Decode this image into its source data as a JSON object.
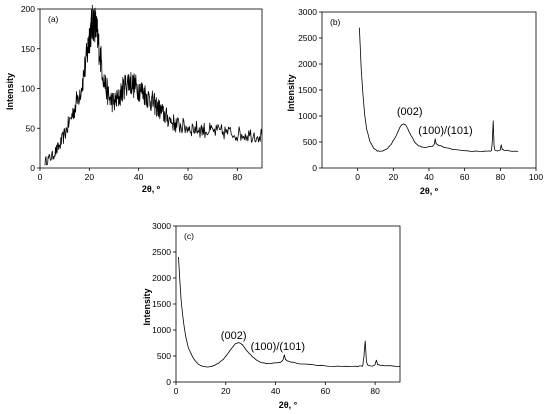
{
  "chart_data": [
    {
      "type": "line",
      "panel_label": "(a)",
      "xlabel": "2θ, º",
      "ylabel": "Intensity",
      "xlim": [
        0,
        90
      ],
      "ylim": [
        0,
        200
      ],
      "xticks": [
        0,
        20,
        40,
        60,
        80
      ],
      "yticks": [
        0,
        50,
        100,
        150,
        200
      ],
      "grid": false,
      "noisy": true,
      "series": [
        {
          "x": [
            2,
            5,
            8,
            11,
            14,
            17,
            19,
            20,
            21,
            22,
            23,
            24,
            26,
            28,
            30,
            32,
            34,
            36,
            38,
            40,
            42,
            44,
            46,
            48,
            50,
            52,
            55,
            58,
            62,
            66,
            70,
            75,
            80,
            85,
            90
          ],
          "values": [
            8,
            15,
            28,
            50,
            75,
            105,
            140,
            165,
            180,
            185,
            172,
            150,
            110,
            88,
            82,
            88,
            102,
            110,
            104,
            100,
            95,
            88,
            82,
            75,
            68,
            62,
            55,
            52,
            50,
            48,
            46,
            45,
            43,
            42,
            41
          ]
        }
      ],
      "annotations": []
    },
    {
      "type": "line",
      "panel_label": "(b)",
      "xlabel": "2θ, º",
      "ylabel": "Intensity",
      "xlim": [
        -20,
        100
      ],
      "ylim": [
        0,
        3000
      ],
      "xticks": [
        0,
        20,
        40,
        60,
        80,
        100
      ],
      "yticks": [
        0,
        500,
        1000,
        1500,
        2000,
        2500,
        3000
      ],
      "grid": false,
      "noisy": false,
      "series": [
        {
          "x": [
            1,
            1.5,
            2,
            3,
            4,
            5,
            7,
            9,
            11,
            13,
            15,
            17,
            19,
            21,
            23,
            24,
            25,
            26,
            27,
            28,
            30,
            32,
            34,
            36,
            38,
            40,
            42,
            43,
            43.5,
            44,
            45,
            47,
            50,
            55,
            60,
            65,
            70,
            73,
            75,
            75.5,
            76,
            76.5,
            77,
            79,
            80,
            80.5,
            81,
            82,
            85,
            90
          ],
          "values": [
            2700,
            2300,
            1900,
            1400,
            1000,
            750,
            500,
            380,
            330,
            320,
            340,
            390,
            470,
            580,
            730,
            800,
            840,
            850,
            820,
            760,
            620,
            500,
            430,
            400,
            395,
            405,
            420,
            460,
            560,
            470,
            440,
            420,
            380,
            350,
            330,
            320,
            320,
            320,
            330,
            500,
            900,
            420,
            340,
            330,
            350,
            450,
            360,
            340,
            330,
            320
          ],
          "name": ""
        }
      ],
      "annotations": [
        {
          "text": "(002)",
          "x": 22,
          "y": 1020
        },
        {
          "text": "(100)/(101)",
          "x": 34,
          "y": 650
        }
      ]
    },
    {
      "type": "line",
      "panel_label": "(c)",
      "xlabel": "2θ, °",
      "ylabel": "Intensity",
      "xlim": [
        0,
        90
      ],
      "ylim": [
        0,
        3000
      ],
      "xticks": [
        0,
        20,
        40,
        60,
        80
      ],
      "yticks": [
        0,
        500,
        1000,
        1500,
        2000,
        2500,
        3000
      ],
      "grid": false,
      "noisy": false,
      "series": [
        {
          "x": [
            1,
            1.5,
            2,
            3,
            4,
            5,
            7,
            9,
            11,
            13,
            15,
            17,
            19,
            21,
            23,
            24,
            25,
            26,
            27,
            28,
            30,
            32,
            34,
            36,
            38,
            40,
            42,
            43,
            43.5,
            44,
            45,
            47,
            50,
            55,
            60,
            65,
            70,
            73,
            75,
            75.5,
            76,
            76.5,
            77,
            79,
            80,
            80.5,
            81,
            82,
            85,
            90
          ],
          "values": [
            2400,
            2000,
            1600,
            1150,
            850,
            650,
            450,
            340,
            300,
            290,
            310,
            360,
            440,
            560,
            690,
            740,
            760,
            745,
            700,
            630,
            520,
            430,
            380,
            360,
            355,
            365,
            385,
            420,
            520,
            430,
            400,
            380,
            350,
            330,
            310,
            300,
            300,
            300,
            310,
            480,
            790,
            400,
            320,
            310,
            330,
            420,
            340,
            320,
            310,
            300
          ]
        }
      ],
      "annotations": [
        {
          "text": "(002)",
          "x": 18,
          "y": 830
        },
        {
          "text": "(100)/(101)",
          "x": 30,
          "y": 620
        }
      ]
    }
  ]
}
